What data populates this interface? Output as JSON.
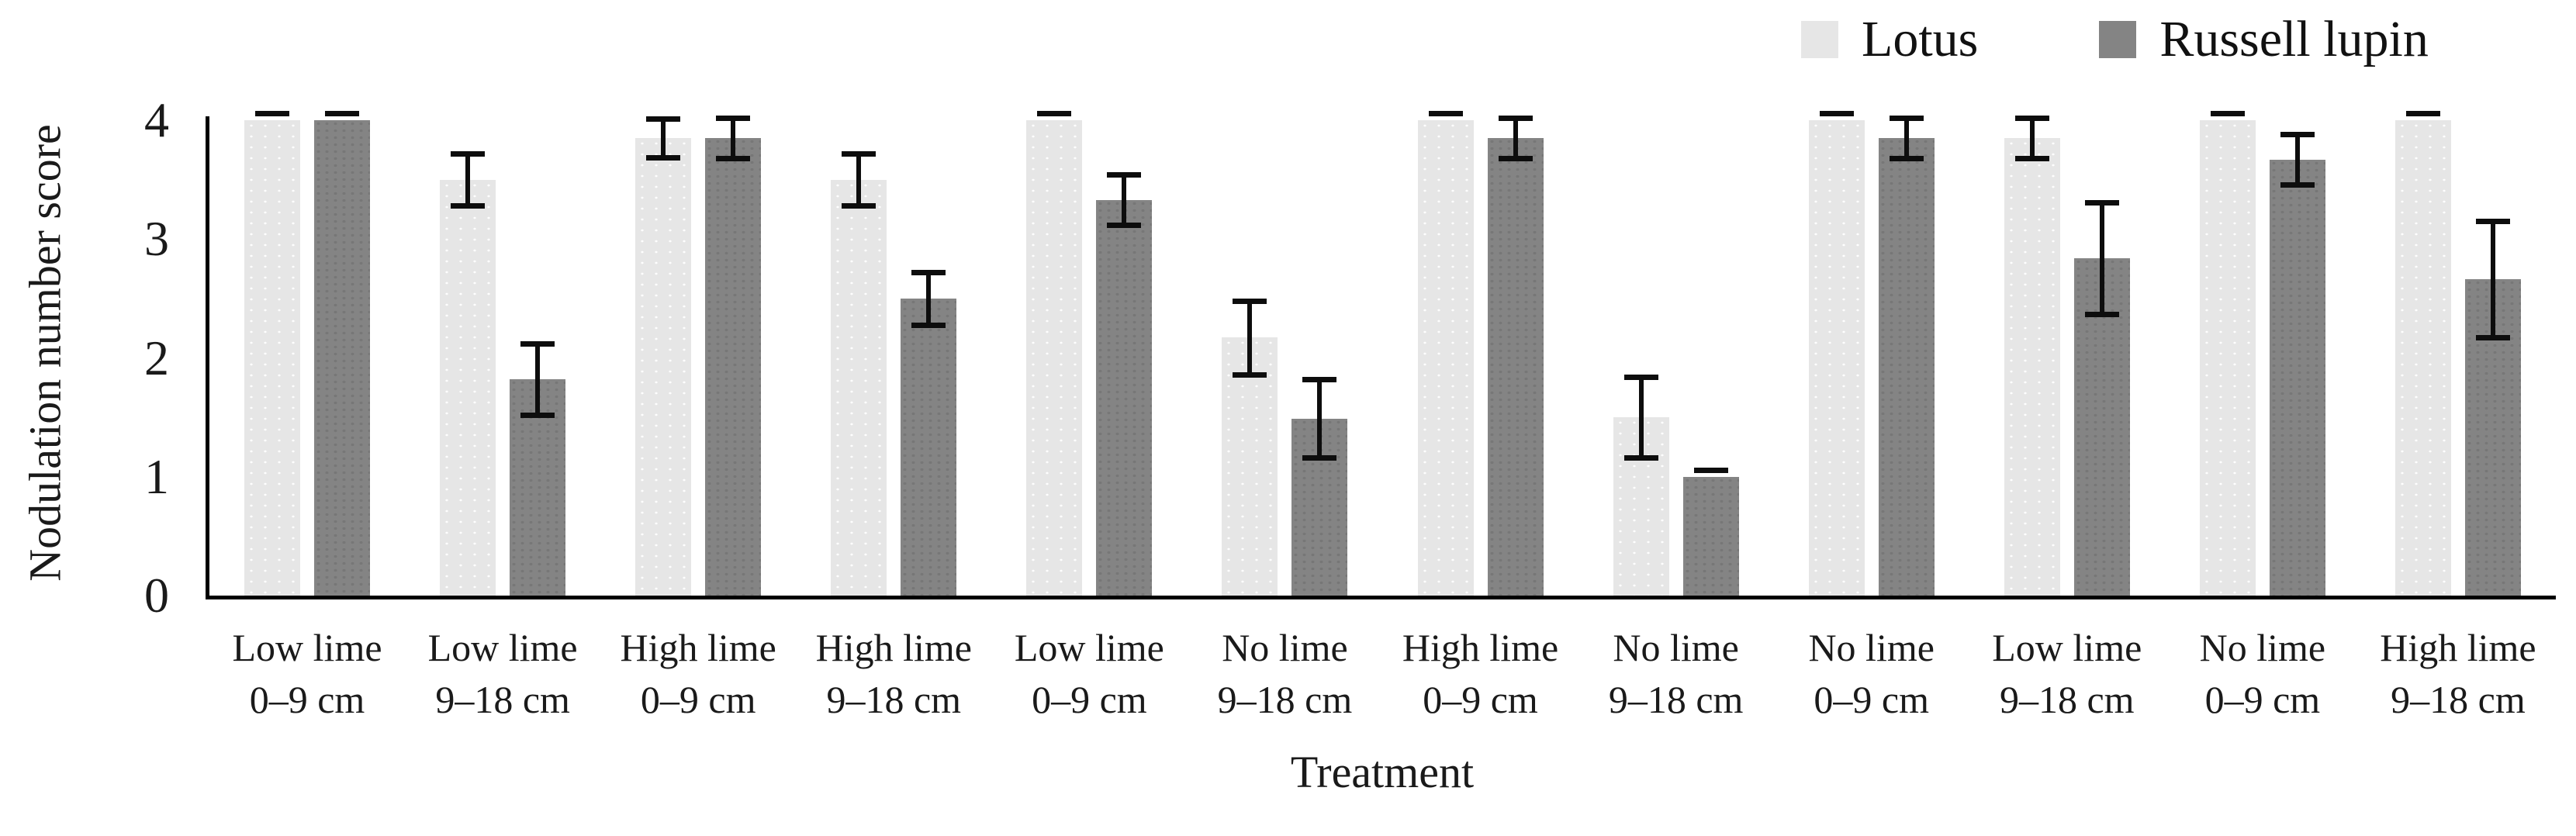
{
  "figure": {
    "y_axis_title": "Nodulation number score",
    "x_axis_title": "Treatment"
  },
  "legend": {
    "items": [
      {
        "label": "Lotus",
        "color": "#e6e6e6"
      },
      {
        "label": "Russell lupin",
        "color": "#848484"
      }
    ]
  },
  "chart_data": {
    "type": "bar",
    "title": "",
    "xlabel": "Treatment",
    "ylabel": "Nodulation number score",
    "ylim": [
      0,
      4
    ],
    "yticks": [
      0,
      1,
      2,
      3,
      4
    ],
    "grid": false,
    "legend_position": "top-right",
    "error_bars": true,
    "categories": [
      [
        "Low lime",
        "0–9 cm"
      ],
      [
        "Low lime",
        "9–18 cm"
      ],
      [
        "High lime",
        "0–9 cm"
      ],
      [
        "High lime",
        "9–18 cm"
      ],
      [
        "Low lime",
        "0–9 cm"
      ],
      [
        "No lime",
        "9–18 cm"
      ],
      [
        "High lime",
        "0–9 cm"
      ],
      [
        "No lime",
        "9–18 cm"
      ],
      [
        "No lime",
        "0–9 cm"
      ],
      [
        "Low lime",
        "9–18 cm"
      ],
      [
        "No lime",
        "0–9 cm"
      ],
      [
        "High lime",
        "9–18 cm"
      ]
    ],
    "series": [
      {
        "name": "Lotus",
        "color": "#e6e6e6",
        "values": [
          4.0,
          3.5,
          3.85,
          3.5,
          4.0,
          2.17,
          4.0,
          1.5,
          4.0,
          3.85,
          4.0,
          4.0
        ],
        "errors": [
          0.02,
          0.22,
          0.16,
          0.22,
          0.02,
          0.31,
          0.02,
          0.34,
          0.02,
          0.17,
          0.02,
          0.02
        ]
      },
      {
        "name": "Russell lupin",
        "color": "#848484",
        "values": [
          4.0,
          1.82,
          3.85,
          2.5,
          3.33,
          1.49,
          3.85,
          1.0,
          3.85,
          2.84,
          3.67,
          2.66
        ],
        "errors": [
          0.02,
          0.3,
          0.17,
          0.22,
          0.21,
          0.33,
          0.17,
          0.02,
          0.17,
          0.47,
          0.21,
          0.49
        ]
      }
    ]
  }
}
